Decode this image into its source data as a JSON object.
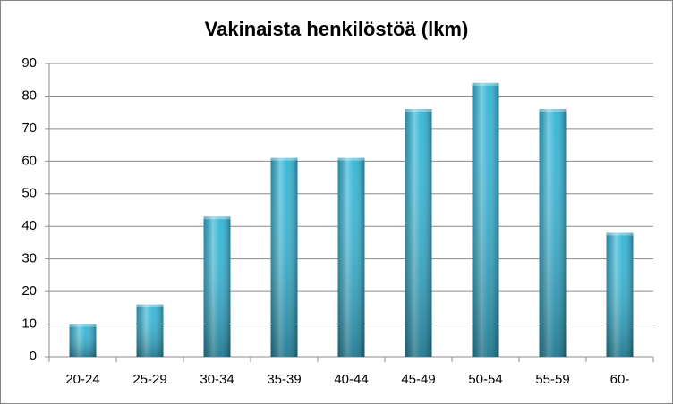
{
  "chart_data": {
    "type": "bar",
    "title": "Vakinaista henkilöstöä (lkm)",
    "categories": [
      "20-24",
      "25-29",
      "30-34",
      "35-39",
      "40-44",
      "45-49",
      "50-54",
      "55-59",
      "60-"
    ],
    "values": [
      10,
      16,
      43,
      61,
      61,
      76,
      84,
      76,
      38
    ],
    "color": "#2fb4d6",
    "ylim": [
      0,
      90
    ],
    "yticks": [
      0,
      10,
      20,
      30,
      40,
      50,
      60,
      70,
      80,
      90
    ],
    "grid": true
  }
}
